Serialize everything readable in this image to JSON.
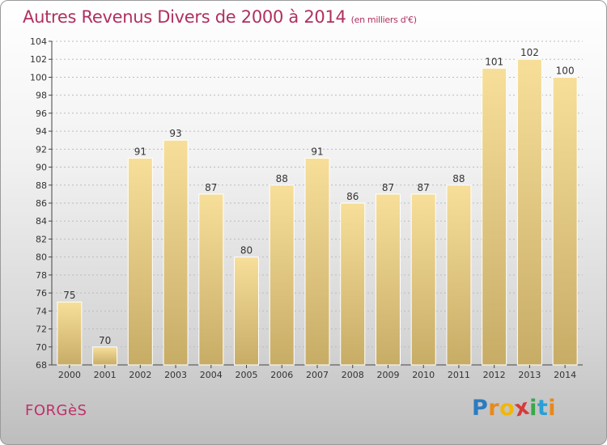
{
  "header": {
    "title": "Autres Revenus Divers de 2000 à 2014",
    "subtitle": "(en milliers d'€)"
  },
  "footer": {
    "town": "FORGèS",
    "logo_letters": [
      "P",
      "r",
      "o",
      "x",
      "i",
      "t",
      "i"
    ],
    "logo_colors": [
      "#2b7cc1",
      "#e8891c",
      "#f2b705",
      "#d63a3a",
      "#3aa84b",
      "#2b9fd6",
      "#e8891c"
    ]
  },
  "colors": {
    "bar_top": "#f7df9a",
    "bar_bottom": "#c7ac66",
    "axis": "#444444",
    "grid": "#bcbcbc"
  },
  "chart_data": {
    "type": "bar",
    "title": "Autres Revenus Divers de 2000 à 2014",
    "subtitle": "(en milliers d'€)",
    "categories": [
      "2000",
      "2001",
      "2002",
      "2003",
      "2004",
      "2005",
      "2006",
      "2007",
      "2008",
      "2009",
      "2010",
      "2011",
      "2012",
      "2013",
      "2014"
    ],
    "values": [
      75,
      70,
      91,
      93,
      87,
      80,
      88,
      91,
      86,
      87,
      87,
      88,
      101,
      102,
      100
    ],
    "ylim": [
      68,
      104
    ],
    "yticks": [
      68,
      70,
      72,
      74,
      76,
      78,
      80,
      82,
      84,
      86,
      88,
      90,
      92,
      94,
      96,
      98,
      100,
      102,
      104
    ],
    "grid": true,
    "legend": "none"
  }
}
